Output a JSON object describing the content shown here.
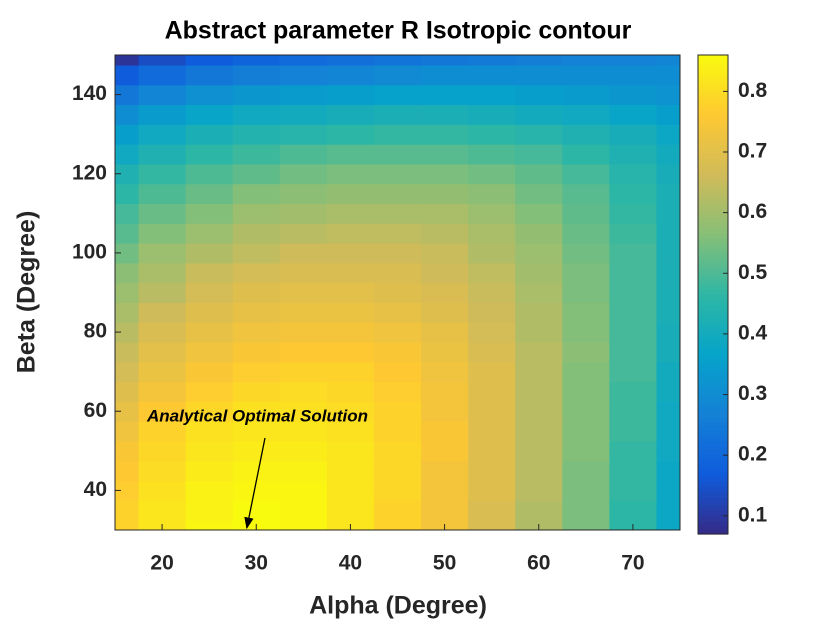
{
  "chart_data": {
    "type": "contour",
    "title": "Abstract parameter R Isotropic contour",
    "x_label": "Alpha (Degree)",
    "y_label": "Beta (Degree)",
    "colormap": "parula",
    "x": [
      15,
      20,
      25,
      30,
      35,
      40,
      45,
      50,
      55,
      60,
      65,
      70,
      75
    ],
    "y": [
      30,
      35,
      40,
      45,
      50,
      55,
      60,
      65,
      70,
      75,
      80,
      85,
      90,
      95,
      100,
      105,
      110,
      115,
      120,
      125,
      130,
      135,
      140,
      145,
      150
    ],
    "z": [
      [
        0.78,
        0.82,
        0.85,
        0.86,
        0.85,
        0.82,
        0.78,
        0.74,
        0.68,
        0.62,
        0.55,
        0.46,
        0.38
      ],
      [
        0.78,
        0.82,
        0.84,
        0.86,
        0.85,
        0.82,
        0.78,
        0.74,
        0.68,
        0.62,
        0.55,
        0.46,
        0.38
      ],
      [
        0.77,
        0.81,
        0.84,
        0.85,
        0.85,
        0.82,
        0.79,
        0.74,
        0.69,
        0.63,
        0.55,
        0.47,
        0.38
      ],
      [
        0.76,
        0.8,
        0.83,
        0.84,
        0.84,
        0.82,
        0.79,
        0.74,
        0.69,
        0.63,
        0.55,
        0.47,
        0.38
      ],
      [
        0.75,
        0.79,
        0.82,
        0.83,
        0.83,
        0.82,
        0.79,
        0.75,
        0.69,
        0.63,
        0.56,
        0.47,
        0.39
      ],
      [
        0.73,
        0.78,
        0.81,
        0.82,
        0.82,
        0.81,
        0.78,
        0.75,
        0.69,
        0.63,
        0.56,
        0.48,
        0.39
      ],
      [
        0.71,
        0.76,
        0.79,
        0.81,
        0.81,
        0.8,
        0.78,
        0.74,
        0.69,
        0.63,
        0.56,
        0.48,
        0.39
      ],
      [
        0.69,
        0.74,
        0.77,
        0.79,
        0.8,
        0.79,
        0.77,
        0.74,
        0.69,
        0.63,
        0.56,
        0.48,
        0.4
      ],
      [
        0.67,
        0.72,
        0.75,
        0.77,
        0.78,
        0.78,
        0.76,
        0.73,
        0.69,
        0.63,
        0.56,
        0.49,
        0.4
      ],
      [
        0.65,
        0.7,
        0.73,
        0.75,
        0.76,
        0.76,
        0.75,
        0.72,
        0.68,
        0.63,
        0.57,
        0.49,
        0.41
      ],
      [
        0.63,
        0.68,
        0.71,
        0.73,
        0.74,
        0.74,
        0.73,
        0.71,
        0.67,
        0.62,
        0.56,
        0.49,
        0.41
      ],
      [
        0.61,
        0.66,
        0.69,
        0.71,
        0.72,
        0.72,
        0.71,
        0.69,
        0.66,
        0.62,
        0.56,
        0.49,
        0.42
      ],
      [
        0.59,
        0.63,
        0.67,
        0.69,
        0.7,
        0.7,
        0.69,
        0.68,
        0.65,
        0.61,
        0.55,
        0.49,
        0.42
      ],
      [
        0.57,
        0.61,
        0.65,
        0.67,
        0.68,
        0.68,
        0.68,
        0.66,
        0.64,
        0.6,
        0.55,
        0.49,
        0.42
      ],
      [
        0.54,
        0.59,
        0.62,
        0.64,
        0.66,
        0.66,
        0.66,
        0.65,
        0.62,
        0.59,
        0.54,
        0.49,
        0.42
      ],
      [
        0.51,
        0.56,
        0.59,
        0.62,
        0.63,
        0.64,
        0.64,
        0.63,
        0.61,
        0.58,
        0.53,
        0.48,
        0.42
      ],
      [
        0.49,
        0.53,
        0.56,
        0.59,
        0.6,
        0.61,
        0.61,
        0.61,
        0.59,
        0.56,
        0.52,
        0.47,
        0.42
      ],
      [
        0.46,
        0.5,
        0.53,
        0.56,
        0.57,
        0.58,
        0.58,
        0.58,
        0.57,
        0.54,
        0.51,
        0.46,
        0.42
      ],
      [
        0.43,
        0.47,
        0.5,
        0.52,
        0.54,
        0.55,
        0.55,
        0.55,
        0.54,
        0.52,
        0.49,
        0.45,
        0.41
      ],
      [
        0.39,
        0.43,
        0.46,
        0.48,
        0.5,
        0.51,
        0.51,
        0.51,
        0.5,
        0.49,
        0.46,
        0.43,
        0.4
      ],
      [
        0.35,
        0.39,
        0.42,
        0.44,
        0.45,
        0.46,
        0.47,
        0.47,
        0.46,
        0.45,
        0.43,
        0.41,
        0.38
      ],
      [
        0.3,
        0.34,
        0.37,
        0.39,
        0.4,
        0.41,
        0.42,
        0.42,
        0.41,
        0.4,
        0.39,
        0.37,
        0.35
      ],
      [
        0.24,
        0.28,
        0.31,
        0.33,
        0.34,
        0.35,
        0.36,
        0.36,
        0.36,
        0.35,
        0.34,
        0.33,
        0.32
      ],
      [
        0.17,
        0.21,
        0.24,
        0.26,
        0.27,
        0.28,
        0.29,
        0.3,
        0.3,
        0.3,
        0.3,
        0.3,
        0.3
      ],
      [
        0.09,
        0.14,
        0.17,
        0.19,
        0.21,
        0.22,
        0.23,
        0.24,
        0.25,
        0.26,
        0.27,
        0.27,
        0.28
      ]
    ],
    "xlim": [
      15,
      75
    ],
    "ylim": [
      30,
      150
    ],
    "xticks": [
      20,
      30,
      40,
      50,
      60,
      70
    ],
    "yticks": [
      40,
      60,
      80,
      100,
      120,
      140
    ],
    "clim": [
      0.07,
      0.86
    ],
    "cticks": [
      0.1,
      0.2,
      0.3,
      0.4,
      0.5,
      0.6,
      0.7,
      0.8
    ],
    "annotation": {
      "text": "Analytical Optimal Solution",
      "x": 29,
      "y": 30
    }
  }
}
